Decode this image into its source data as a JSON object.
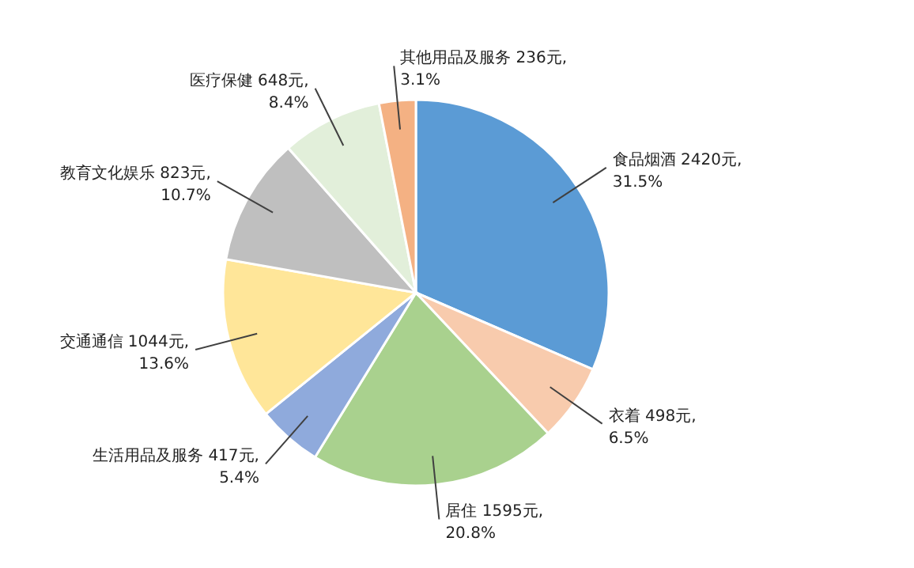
{
  "chart_data": {
    "type": "pie",
    "categories": [
      "食品烟酒",
      "衣着",
      "居住",
      "生活用品及服务",
      "交通通信",
      "教育文化娱乐",
      "医疗保健",
      "其他用品及服务"
    ],
    "values": [
      2420,
      498,
      1595,
      417,
      1044,
      823,
      648,
      236
    ],
    "value_labels": [
      "2420元,\n31.5%",
      "498元,\n6.5%",
      "1595元,\n20.8%",
      "417元,\n5.4%",
      "1044元,\n13.6%",
      "823元,\n10.7%",
      "648元,\n8.4%",
      "236元,\n3.1%"
    ],
    "colors": [
      "#5b9bd5",
      "#f8cbad",
      "#a9d18e",
      "#8faadc",
      "#ffe699",
      "#bfbfbf",
      "#e2efda",
      "#f4b183"
    ],
    "legend": false
  }
}
